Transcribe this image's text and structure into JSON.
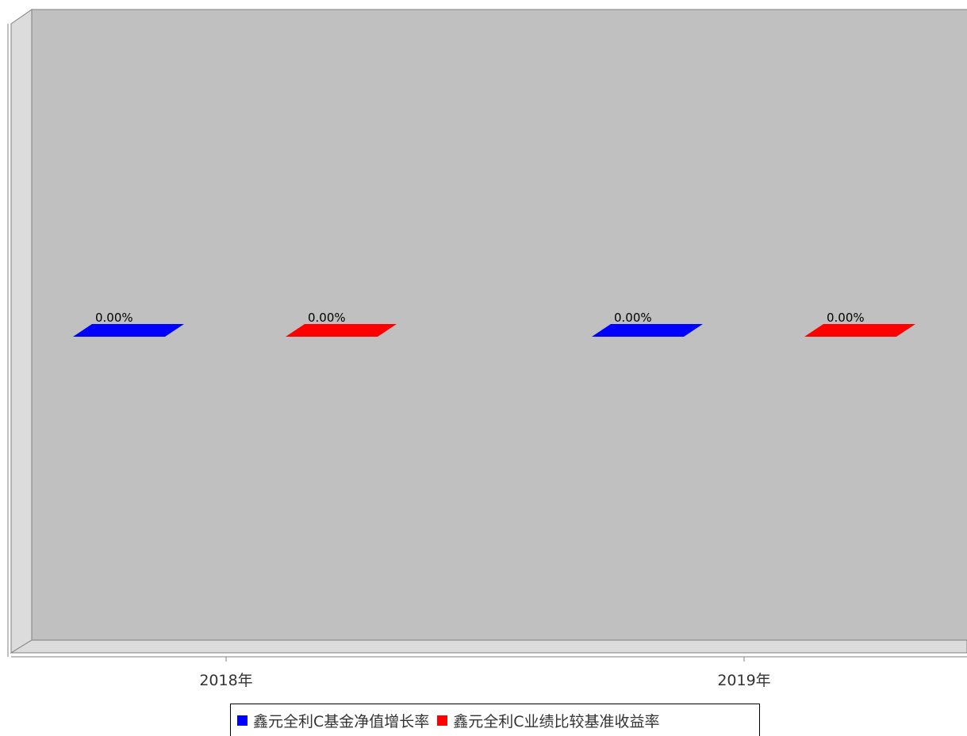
{
  "chart_data": {
    "type": "bar",
    "categories": [
      "2018年",
      "2019年"
    ],
    "series": [
      {
        "name": "鑫元全利C基金净值增长率",
        "values": [
          0.0,
          0.0
        ],
        "color": "#0000ff"
      },
      {
        "name": "鑫元全利C业绩比较基准收益率",
        "values": [
          0.0,
          0.0
        ],
        "color": "#ff0000"
      }
    ],
    "data_labels": [
      [
        "0.00%",
        "0.00%"
      ],
      [
        "0.00%",
        "0.00%"
      ]
    ],
    "grid": false,
    "legend_position": "bottom",
    "plot_background": "#c0c0c0",
    "three_d": true
  }
}
